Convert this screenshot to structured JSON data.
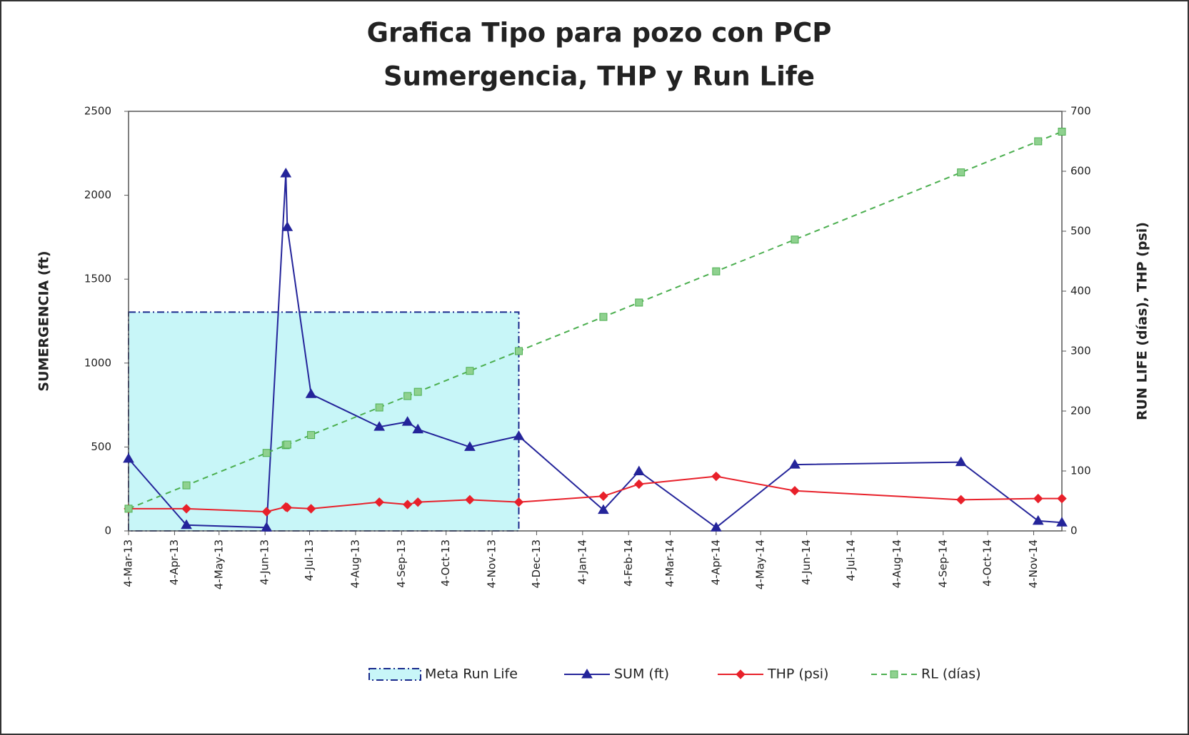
{
  "chart_data": {
    "type": "line",
    "title": "Grafica Tipo para pozo con PCP",
    "subtitle": "Sumergencia, THP y Run Life",
    "y_label": "SUMERGENCIA (ft)",
    "y2_label": "RUN LIFE (días), THP (psi)",
    "x": [
      "2013-03-04",
      "2013-04-12",
      "2013-06-05",
      "2013-06-18",
      "2013-06-19",
      "2013-07-05",
      "2013-08-20",
      "2013-09-08",
      "2013-09-15",
      "2013-10-20",
      "2013-11-22",
      "2014-01-18",
      "2014-02-11",
      "2014-04-04",
      "2014-05-27",
      "2014-09-16",
      "2014-11-07",
      "2014-11-23"
    ],
    "target": {
      "name": "Meta Run Life",
      "x": [
        "2013-03-04",
        "2013-11-22"
      ],
      "value": 365,
      "axis": "y2",
      "color": "#c8f6f8",
      "line_color": "#1a2a8c"
    },
    "series": [
      {
        "name": "SUM (ft)",
        "color": "#24249a",
        "marker": "triangle",
        "dash": false,
        "values": [
          430,
          35,
          20,
          2130,
          1810,
          815,
          620,
          650,
          605,
          500,
          565,
          125,
          355,
          20,
          395,
          410,
          60,
          50
        ]
      },
      {
        "name": "THP (psi)",
        "color": "#e8202a",
        "marker": "diamond",
        "dash": false,
        "axis": "y2",
        "values": [
          37,
          37,
          32,
          40,
          39,
          37,
          48,
          44,
          48,
          52,
          48,
          58,
          78,
          91,
          67,
          52,
          54,
          54
        ]
      },
      {
        "name": "RL (días)",
        "color": "#4caf50",
        "marker": "square",
        "dash": true,
        "axis": "y2",
        "values": [
          37,
          76,
          130,
          143,
          144,
          160,
          206,
          225,
          232,
          267,
          300,
          357,
          381,
          433,
          486,
          598,
          650,
          666
        ]
      }
    ],
    "xlim": [
      "2013-03-04",
      "2014-11-23"
    ],
    "xticks": [
      {
        "value": "2013-03-04",
        "label": "4-Mar-13"
      },
      {
        "value": "2013-04-04",
        "label": "4-Apr-13"
      },
      {
        "value": "2013-05-04",
        "label": "4-May-13"
      },
      {
        "value": "2013-06-04",
        "label": "4-Jun-13"
      },
      {
        "value": "2013-07-04",
        "label": "4-Jul-13"
      },
      {
        "value": "2013-08-04",
        "label": "4-Aug-13"
      },
      {
        "value": "2013-09-04",
        "label": "4-Sep-13"
      },
      {
        "value": "2013-10-04",
        "label": "4-Oct-13"
      },
      {
        "value": "2013-11-04",
        "label": "4-Nov-13"
      },
      {
        "value": "2013-12-04",
        "label": "4-Dec-13"
      },
      {
        "value": "2014-01-04",
        "label": "4-Jan-14"
      },
      {
        "value": "2014-02-04",
        "label": "4-Feb-14"
      },
      {
        "value": "2014-03-04",
        "label": "4-Mar-14"
      },
      {
        "value": "2014-04-04",
        "label": "4-Apr-14"
      },
      {
        "value": "2014-05-04",
        "label": "4-May-14"
      },
      {
        "value": "2014-06-04",
        "label": "4-Jun-14"
      },
      {
        "value": "2014-07-04",
        "label": "4-Jul-14"
      },
      {
        "value": "2014-08-04",
        "label": "4-Aug-14"
      },
      {
        "value": "2014-09-04",
        "label": "4-Sep-14"
      },
      {
        "value": "2014-10-04",
        "label": "4-Oct-14"
      },
      {
        "value": "2014-11-04",
        "label": "4-Nov-14"
      }
    ],
    "ylim": [
      0,
      2500
    ],
    "yticks": [
      0,
      500,
      1000,
      1500,
      2000,
      2500
    ],
    "y2lim": [
      0,
      700
    ],
    "y2ticks": [
      0,
      100,
      200,
      300,
      400,
      500,
      600,
      700
    ],
    "grid": false,
    "legend": "bottom"
  }
}
